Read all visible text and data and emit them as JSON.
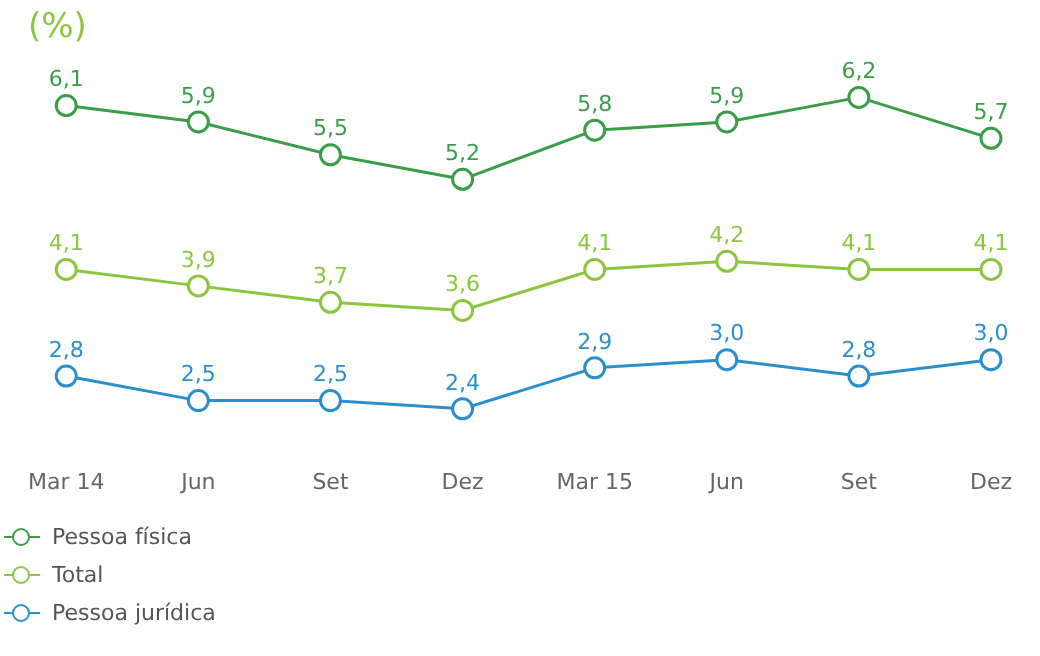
{
  "chart_data": {
    "type": "line",
    "title": "(%)",
    "categories": [
      "Mar 14",
      "Jun",
      "Set",
      "Dez",
      "Mar 15",
      "Jun",
      "Set",
      "Dez"
    ],
    "tick_labels": "x",
    "grid": false,
    "legend": "bottom left",
    "marker": "circle",
    "line_style": "solid",
    "series": [
      {
        "name": "Pessoa física",
        "color": "#3a9e48",
        "values": [
          6.1,
          5.9,
          5.5,
          5.2,
          5.8,
          5.9,
          6.2,
          5.7
        ],
        "value_labels": [
          "6,1",
          "5,9",
          "5,5",
          "5,2",
          "5,8",
          "5,9",
          "6,2",
          "5,7"
        ]
      },
      {
        "name": "Total",
        "color": "#8cc63f",
        "values": [
          4.1,
          3.9,
          3.7,
          3.6,
          4.1,
          4.2,
          4.1,
          4.1
        ],
        "value_labels": [
          "4,1",
          "3,9",
          "3,7",
          "3,6",
          "4,1",
          "4,2",
          "4,1",
          "4,1"
        ]
      },
      {
        "name": "Pessoa jurídica",
        "color": "#2b8fcc",
        "values": [
          2.8,
          2.5,
          2.5,
          2.4,
          2.9,
          3.0,
          2.8,
          3.0
        ],
        "value_labels": [
          "2,8",
          "2,5",
          "2,5",
          "2,4",
          "2,9",
          "3,0",
          "2,8",
          "3,0"
        ]
      }
    ]
  }
}
